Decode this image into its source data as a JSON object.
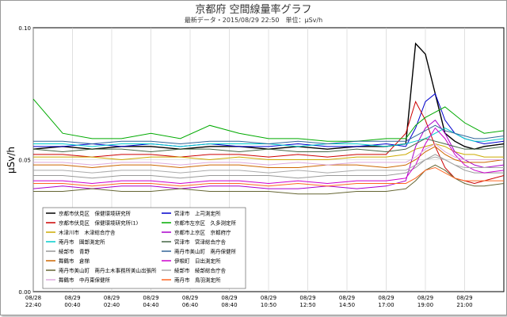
{
  "chart_data": {
    "type": "line",
    "title": "京都府 空間線量率グラフ",
    "subtitle": "最新データ・2015/08/29 22:50　単位：μSv/h",
    "ylabel": "μSv/h",
    "xlabel": "",
    "ylim": [
      0.0,
      0.1
    ],
    "yticks": [
      "0.10",
      "0.05",
      "0.00"
    ],
    "x_ticks": [
      {
        "date": "08/28",
        "time": "22:40"
      },
      {
        "date": "08/29",
        "time": "00:40"
      },
      {
        "date": "08/29",
        "time": "02:40"
      },
      {
        "date": "08/29",
        "time": "04:40"
      },
      {
        "date": "08/29",
        "time": "06:40"
      },
      {
        "date": "08/29",
        "time": "08:40"
      },
      {
        "date": "08/29",
        "time": "10:50"
      },
      {
        "date": "08/29",
        "time": "12:50"
      },
      {
        "date": "08/29",
        "time": "14:50"
      },
      {
        "date": "08/29",
        "time": "17:00"
      },
      {
        "date": "08/29",
        "time": "19:00"
      },
      {
        "date": "08/29",
        "time": "21:00"
      }
    ],
    "x_hours": [
      0,
      3,
      6,
      9,
      12,
      15,
      18,
      21,
      24,
      27,
      30,
      33,
      36,
      38,
      39,
      40,
      41,
      42,
      43,
      44,
      45,
      46,
      48
    ],
    "grid": true,
    "legend_position": "bottom-left",
    "series": [
      {
        "name": "京都市伏見区　保健環境研究所",
        "color": "#000000",
        "values": [
          0.054,
          0.055,
          0.054,
          0.055,
          0.055,
          0.054,
          0.055,
          0.055,
          0.054,
          0.055,
          0.054,
          0.055,
          0.055,
          0.056,
          0.094,
          0.09,
          0.075,
          0.06,
          0.057,
          0.055,
          0.054,
          0.055,
          0.056
        ]
      },
      {
        "name": "宮津市　上司測定所",
        "color": "#0000cc",
        "values": [
          0.055,
          0.055,
          0.056,
          0.055,
          0.056,
          0.055,
          0.056,
          0.055,
          0.055,
          0.056,
          0.055,
          0.055,
          0.056,
          0.055,
          0.062,
          0.072,
          0.075,
          0.065,
          0.06,
          0.058,
          0.057,
          0.056,
          0.057
        ]
      },
      {
        "name": "京都市伏見区　保健環境研究所(1)",
        "color": "#cc0000",
        "values": [
          0.052,
          0.052,
          0.051,
          0.052,
          0.052,
          0.051,
          0.052,
          0.052,
          0.051,
          0.052,
          0.051,
          0.052,
          0.052,
          0.06,
          0.072,
          0.065,
          0.055,
          0.047,
          0.043,
          0.042,
          0.041,
          0.042,
          0.044
        ]
      },
      {
        "name": "京都市左京区　久多測定所",
        "color": "#00aa00",
        "values": [
          0.073,
          0.06,
          0.058,
          0.058,
          0.06,
          0.058,
          0.063,
          0.06,
          0.058,
          0.058,
          0.057,
          0.057,
          0.058,
          0.058,
          0.063,
          0.066,
          0.068,
          0.07,
          0.067,
          0.064,
          0.062,
          0.06,
          0.061
        ]
      },
      {
        "name": "木津川市　木津総合庁舎",
        "color": "#ccaa00",
        "values": [
          0.051,
          0.051,
          0.051,
          0.05,
          0.051,
          0.051,
          0.05,
          0.051,
          0.05,
          0.05,
          0.05,
          0.051,
          0.051,
          0.052,
          0.054,
          0.055,
          0.056,
          0.055,
          0.053,
          0.052,
          0.052,
          0.051,
          0.051
        ]
      },
      {
        "name": "京都市上京区　京都府庁",
        "color": "#aa00cc",
        "values": [
          0.039,
          0.04,
          0.039,
          0.04,
          0.04,
          0.039,
          0.04,
          0.04,
          0.039,
          0.039,
          0.04,
          0.039,
          0.04,
          0.042,
          0.055,
          0.062,
          0.065,
          0.06,
          0.053,
          0.05,
          0.048,
          0.047,
          0.048
        ]
      },
      {
        "name": "南丹市　園部測定所",
        "color": "#00cccc",
        "values": [
          0.056,
          0.056,
          0.055,
          0.056,
          0.056,
          0.055,
          0.056,
          0.056,
          0.056,
          0.055,
          0.056,
          0.056,
          0.055,
          0.056,
          0.057,
          0.058,
          0.06,
          0.062,
          0.06,
          0.058,
          0.057,
          0.057,
          0.058
        ]
      },
      {
        "name": "宮津市　宮津総合庁舎",
        "color": "#446644",
        "values": [
          0.054,
          0.053,
          0.054,
          0.054,
          0.053,
          0.054,
          0.054,
          0.053,
          0.054,
          0.053,
          0.053,
          0.054,
          0.053,
          0.054,
          0.056,
          0.058,
          0.057,
          0.056,
          0.055,
          0.054,
          0.054,
          0.054,
          0.055
        ]
      },
      {
        "name": "綾部市　青野",
        "color": "#999999",
        "values": [
          0.044,
          0.044,
          0.043,
          0.044,
          0.044,
          0.043,
          0.044,
          0.044,
          0.044,
          0.043,
          0.044,
          0.044,
          0.044,
          0.045,
          0.047,
          0.05,
          0.052,
          0.05,
          0.048,
          0.046,
          0.045,
          0.045,
          0.045
        ]
      },
      {
        "name": "南丹市美山町　南丹保健所",
        "color": "#336699",
        "values": [
          0.057,
          0.057,
          0.056,
          0.057,
          0.057,
          0.056,
          0.057,
          0.057,
          0.056,
          0.057,
          0.056,
          0.057,
          0.057,
          0.057,
          0.059,
          0.061,
          0.063,
          0.061,
          0.06,
          0.059,
          0.058,
          0.058,
          0.059
        ]
      },
      {
        "name": "舞鶴市　倉梯",
        "color": "#cc6600",
        "values": [
          0.048,
          0.048,
          0.047,
          0.048,
          0.048,
          0.047,
          0.048,
          0.048,
          0.047,
          0.047,
          0.048,
          0.048,
          0.047,
          0.048,
          0.05,
          0.053,
          0.055,
          0.052,
          0.05,
          0.049,
          0.049,
          0.049,
          0.05
        ]
      },
      {
        "name": "伊根町　日出測定所",
        "color": "#cc00cc",
        "values": [
          0.042,
          0.042,
          0.041,
          0.042,
          0.042,
          0.041,
          0.042,
          0.042,
          0.041,
          0.042,
          0.041,
          0.042,
          0.042,
          0.043,
          0.048,
          0.056,
          0.062,
          0.058,
          0.052,
          0.048,
          0.046,
          0.045,
          0.046
        ]
      },
      {
        "name": "南丹市美山町　南丹土木事務所美山出張所",
        "color": "#666633",
        "values": [
          0.038,
          0.038,
          0.039,
          0.038,
          0.038,
          0.039,
          0.038,
          0.038,
          0.038,
          0.037,
          0.037,
          0.038,
          0.038,
          0.039,
          0.042,
          0.046,
          0.048,
          0.046,
          0.043,
          0.041,
          0.04,
          0.04,
          0.041
        ]
      },
      {
        "name": "綾部市　綾部総合庁舎",
        "color": "#aaaaaa",
        "values": [
          0.046,
          0.046,
          0.045,
          0.046,
          0.046,
          0.045,
          0.046,
          0.046,
          0.045,
          0.046,
          0.045,
          0.046,
          0.046,
          0.046,
          0.048,
          0.05,
          0.051,
          0.05,
          0.048,
          0.047,
          0.047,
          0.047,
          0.047
        ]
      },
      {
        "name": "舞鶴市　中丹東保健所",
        "color": "#ddaadd",
        "values": [
          0.049,
          0.049,
          0.048,
          0.049,
          0.049,
          0.048,
          0.049,
          0.049,
          0.048,
          0.049,
          0.048,
          0.049,
          0.049,
          0.049,
          0.051,
          0.054,
          0.056,
          0.053,
          0.051,
          0.05,
          0.05,
          0.05,
          0.05
        ]
      },
      {
        "name": "南丹市　鳥羽測定所",
        "color": "#ff6622",
        "values": [
          0.041,
          0.041,
          0.04,
          0.041,
          0.041,
          0.04,
          0.041,
          0.041,
          0.04,
          0.041,
          0.04,
          0.041,
          0.041,
          0.041,
          0.043,
          0.046,
          0.047,
          0.045,
          0.043,
          0.042,
          0.042,
          0.042,
          0.042
        ]
      }
    ]
  }
}
